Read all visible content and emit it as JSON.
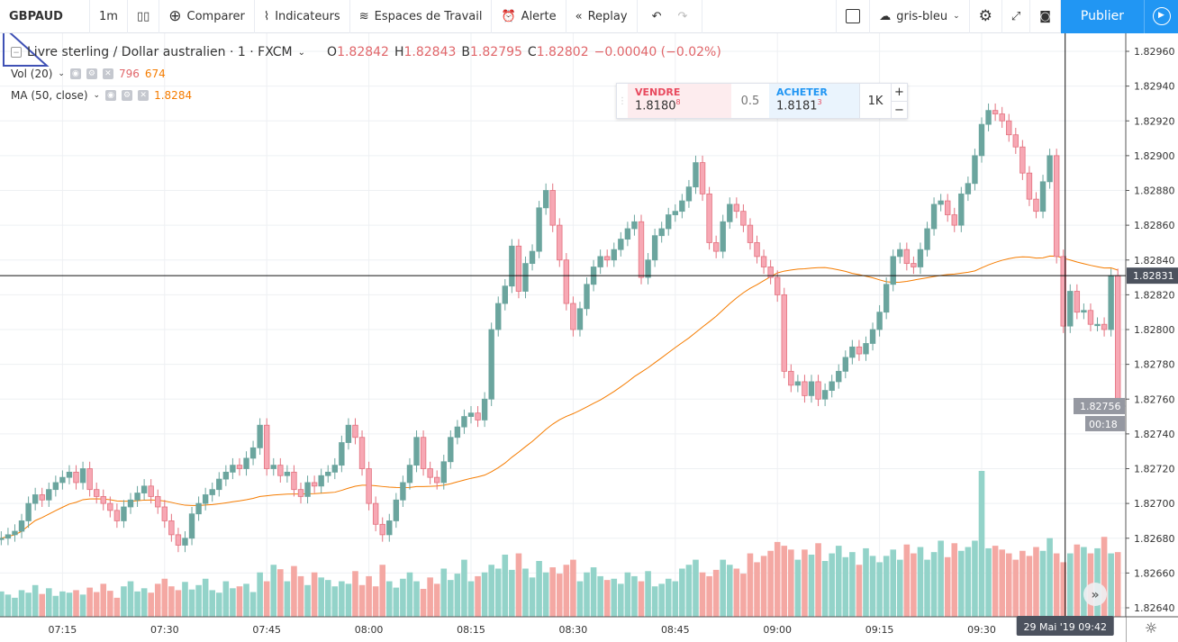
{
  "toolbar": {
    "symbol": "GBPAUD",
    "interval": "1m",
    "compare": "Comparer",
    "indicators": "Indicateurs",
    "workspaces": "Espaces de Travail",
    "alert": "Alerte",
    "replay": "Replay",
    "theme": "gris-bleu",
    "publish": "Publier"
  },
  "legend": {
    "title": "Livre sterling / Dollar australien · 1 · FXCM",
    "o_label": "O",
    "o": "1.82842",
    "h_label": "H",
    "h": "1.82843",
    "b_label": "B",
    "b": "1.82795",
    "c_label": "C",
    "c": "1.82802",
    "change": "−0.00040 (−0.02%)",
    "vol_label": "Vol (20)",
    "vol_value": "796",
    "vol_ma": "674",
    "ma_label": "MA (50, close)",
    "ma_value": "1.8284"
  },
  "trade": {
    "sell_label": "VENDRE",
    "sell_main": "1.8180",
    "sell_sup": "8",
    "spread": "0.5",
    "buy_label": "ACHETER",
    "buy_main": "1.8181",
    "buy_sup": "3",
    "qty": "1K",
    "plus": "+",
    "minus": "−"
  },
  "axis": {
    "price_ticks": [
      "1.82960",
      "1.82940",
      "1.82920",
      "1.82900",
      "1.82880",
      "1.82860",
      "1.82840",
      "1.82820",
      "1.82800",
      "1.82780",
      "1.82760",
      "1.82740",
      "1.82720",
      "1.82700",
      "1.82680",
      "1.82660",
      "1.82640"
    ],
    "time_ticks": [
      "07:15",
      "07:30",
      "07:45",
      "08:00",
      "08:15",
      "08:30",
      "08:45",
      "09:00",
      "09:15",
      "09:30"
    ],
    "crosshair_price": "1.82831",
    "last_price": "1.82756",
    "countdown": "00:18",
    "crosshair_time": "29 Mai '19   09:42"
  },
  "colors": {
    "up": "#6ba59e",
    "down": "#f7a8b4",
    "vol_up": "#93d3c9",
    "vol_down": "#f4a8a3",
    "ma": "#f57c00",
    "accent": "#2196f3"
  },
  "chart_data": {
    "type": "candlestick",
    "symbol": "GBPAUD",
    "start_time": "07:06",
    "interval": "1m",
    "price_base": 1.82,
    "price_unit": 1e-05,
    "ylim": [
      1.8264,
      1.8297
    ],
    "closes": [
      680,
      682,
      684,
      690,
      700,
      705,
      702,
      708,
      712,
      715,
      718,
      712,
      720,
      708,
      704,
      700,
      696,
      690,
      698,
      702,
      706,
      710,
      704,
      698,
      690,
      682,
      676,
      680,
      694,
      700,
      705,
      708,
      714,
      718,
      722,
      720,
      726,
      732,
      745,
      720,
      722,
      716,
      718,
      708,
      704,
      712,
      710,
      716,
      718,
      722,
      735,
      745,
      738,
      720,
      700,
      688,
      682,
      690,
      702,
      712,
      722,
      738,
      720,
      715,
      712,
      724,
      738,
      744,
      750,
      752,
      748,
      760,
      800,
      815,
      825,
      848,
      822,
      838,
      845,
      870,
      880,
      860,
      840,
      815,
      800,
      812,
      826,
      836,
      842,
      840,
      846,
      852,
      858,
      862,
      830,
      840,
      854,
      858,
      866,
      868,
      874,
      882,
      896,
      878,
      850,
      845,
      862,
      872,
      868,
      860,
      850,
      842,
      836,
      830,
      820,
      776,
      768,
      770,
      762,
      770,
      760,
      765,
      770,
      776,
      784,
      790,
      786,
      792,
      800,
      810,
      826,
      842,
      846,
      838,
      836,
      846,
      858,
      872,
      874,
      866,
      860,
      878,
      884,
      900,
      918,
      926,
      924,
      920,
      912,
      905,
      890,
      875,
      868,
      885,
      900,
      842,
      802,
      822,
      810,
      811,
      803,
      803,
      800,
      831,
      756
    ],
    "volumes": [
      400,
      350,
      300,
      420,
      380,
      500,
      360,
      450,
      330,
      400,
      380,
      420,
      350,
      460,
      390,
      520,
      410,
      300,
      480,
      560,
      400,
      450,
      380,
      520,
      600,
      480,
      420,
      550,
      430,
      500,
      600,
      420,
      380,
      560,
      450,
      480,
      520,
      390,
      700,
      560,
      820,
      750,
      560,
      800,
      640,
      500,
      700,
      620,
      580,
      480,
      560,
      520,
      720,
      500,
      640,
      480,
      820,
      560,
      460,
      600,
      700,
      560,
      440,
      620,
      520,
      760,
      580,
      680,
      900,
      560,
      640,
      700,
      820,
      760,
      980,
      740,
      1000,
      760,
      620,
      880,
      700,
      780,
      680,
      820,
      900,
      560,
      700,
      780,
      640,
      580,
      600,
      520,
      700,
      640,
      560,
      720,
      480,
      520,
      600,
      560,
      760,
      820,
      900,
      700,
      640,
      740,
      900,
      820,
      760,
      680,
      1000,
      860,
      960,
      1040,
      1180,
      1120,
      1060,
      900,
      1060,
      980,
      1160,
      880,
      1000,
      1120,
      940,
      1020,
      820,
      1080,
      960,
      860,
      960,
      1060,
      900,
      1140,
      1000,
      1100,
      900,
      1020,
      1200,
      940,
      1160,
      1040,
      1100,
      1200,
      2300,
      1080,
      1120,
      1060,
      1000,
      900,
      1040,
      960,
      1100,
      1040,
      1240,
      1000,
      860,
      1000,
      1140,
      1100,
      1000,
      1080,
      1260,
      1000,
      1020
    ],
    "indicators": [
      "Vol (20)",
      "MA (50, close)"
    ]
  }
}
